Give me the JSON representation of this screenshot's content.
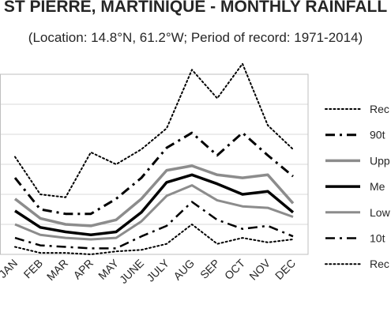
{
  "header": {
    "title": "ST PIERRE, MARTINIQUE - MONTHLY RAINFALL",
    "subtitle": "(Location: 14.8°N, 61.2°W; Period of record: 1971-2014)"
  },
  "chart_data": {
    "type": "line",
    "categories": [
      "JAN",
      "FEB",
      "MAR",
      "APR",
      "MAY",
      "JUNE",
      "JULY",
      "AUG",
      "SEP",
      "OCT",
      "NOV",
      "DEC"
    ],
    "grid": true,
    "legend_position": "right",
    "ylim": [
      0,
      6
    ],
    "series": [
      {
        "name": "Rec",
        "color": "#000000",
        "style": "dotted",
        "width": 2,
        "values": [
          3.25,
          2.0,
          1.9,
          3.4,
          3.0,
          3.5,
          4.2,
          6.15,
          5.2,
          6.35,
          4.3,
          3.5
        ]
      },
      {
        "name": "90t",
        "color": "#000000",
        "style": "dashdot",
        "width": 3,
        "values": [
          2.55,
          1.5,
          1.35,
          1.35,
          1.85,
          2.55,
          3.55,
          4.05,
          3.3,
          4.05,
          3.3,
          2.6
        ]
      },
      {
        "name": "Upp",
        "color": "#8c8c8c",
        "style": "solid",
        "width": 3.5,
        "values": [
          1.85,
          1.2,
          1.0,
          0.95,
          1.15,
          1.85,
          2.8,
          2.95,
          2.65,
          2.55,
          2.65,
          1.7
        ]
      },
      {
        "name": "Me",
        "color": "#000000",
        "style": "solid",
        "width": 3.5,
        "values": [
          1.45,
          0.9,
          0.75,
          0.65,
          0.75,
          1.4,
          2.4,
          2.65,
          2.35,
          2.0,
          2.1,
          1.4
        ]
      },
      {
        "name": "Low",
        "color": "#8c8c8c",
        "style": "solid",
        "width": 3,
        "values": [
          1.0,
          0.65,
          0.55,
          0.5,
          0.55,
          1.1,
          1.95,
          2.3,
          1.8,
          1.6,
          1.55,
          1.25
        ]
      },
      {
        "name": "10t",
        "color": "#000000",
        "style": "dashdot",
        "width": 2.5,
        "values": [
          0.55,
          0.3,
          0.25,
          0.2,
          0.2,
          0.6,
          0.95,
          1.75,
          1.15,
          0.85,
          0.95,
          0.6
        ]
      },
      {
        "name": "Rec",
        "color": "#000000",
        "style": "dotted",
        "width": 2,
        "values": [
          0.25,
          0.05,
          0.05,
          0.0,
          0.1,
          0.15,
          0.35,
          1.0,
          0.35,
          0.55,
          0.4,
          0.5
        ]
      }
    ]
  }
}
